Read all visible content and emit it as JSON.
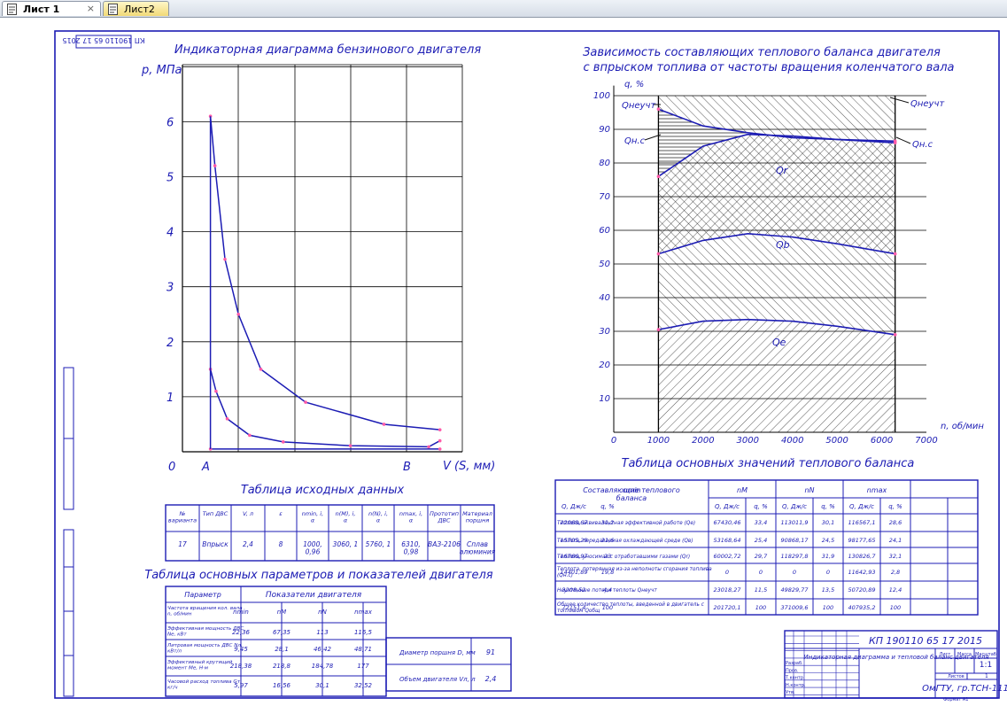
{
  "tabs": [
    {
      "label": "Лист 1",
      "close": "×",
      "active": true
    },
    {
      "label": "Лист2",
      "active": false
    }
  ],
  "indicator": {
    "title": "Индикаторная диаграмма бензинового двигателя",
    "stamp": "КП 190110 65 17 2015",
    "ylabel": "p, МПа",
    "xlabel": "V (S, мм)",
    "yticks": [
      "0",
      "1",
      "2",
      "3",
      "4",
      "5",
      "6"
    ],
    "point_a": "A",
    "point_b": "B"
  },
  "chart_data": [
    {
      "type": "line",
      "title": "Индикаторная диаграмма бензинового двигателя",
      "xlabel": "V (S, мм)",
      "ylabel": "p, МПа",
      "ylim": [
        0,
        6.5
      ],
      "series": [
        {
          "values": [
            [
              0.5,
              6.1
            ],
            [
              0.9,
              5.2
            ],
            [
              1.8,
              3.5
            ],
            [
              3.0,
              2.5
            ],
            [
              5.0,
              1.5
            ],
            [
              9,
              0.9
            ],
            [
              16,
              0.5
            ],
            [
              21,
              0.4
            ]
          ]
        },
        {
          "values": [
            [
              0.5,
              1.5
            ],
            [
              1,
              1.1
            ],
            [
              2,
              0.6
            ],
            [
              4,
              0.3
            ],
            [
              7,
              0.18
            ],
            [
              13,
              0.11
            ],
            [
              20,
              0.09
            ],
            [
              21,
              0.2
            ]
          ]
        },
        {
          "values": [
            [
              0.5,
              0.05
            ],
            [
              21,
              0.05
            ]
          ]
        }
      ]
    },
    {
      "type": "area",
      "title": "Зависимость составляющих теплового баланса двигателя с впрыском топлива от частоты вращения коленчатого вала",
      "xlabel": "n, об/мин",
      "ylabel": "q, %",
      "xlim": [
        0,
        7000
      ],
      "ylim": [
        0,
        100
      ],
      "x": [
        1000,
        2000,
        3000,
        4000,
        5000,
        6300
      ],
      "series": [
        {
          "name": "qe",
          "values": [
            30.5,
            33,
            33.5,
            33,
            31.5,
            29
          ]
        },
        {
          "name": "qb",
          "values": [
            53,
            57,
            59,
            58,
            56,
            53
          ]
        },
        {
          "name": "qr",
          "values": [
            76,
            85,
            88.5,
            88,
            87,
            86
          ]
        },
        {
          "name": "qн.с",
          "values": [
            96,
            91,
            89,
            87.5,
            87,
            86.5
          ]
        }
      ]
    }
  ],
  "heat_chart": {
    "title1": "Зависимость составляющих теплового баланса двигателя",
    "title2": "с впрыском топлива от частоты вращения коленчатого вала",
    "ylabel": "q, %",
    "xlabel": "n, об/мин",
    "yticks": [
      "10",
      "20",
      "30",
      "40",
      "50",
      "60",
      "70",
      "80",
      "90",
      "100"
    ],
    "xticks": [
      "0",
      "1000",
      "2000",
      "3000",
      "4000",
      "5000",
      "6000",
      "7000"
    ],
    "labels": {
      "qneuch_l": "Qнеучт",
      "qneuch_r": "Qнеучт",
      "qnc_l": "Qн.с",
      "qnc_r": "Qн.с",
      "qr": "Qr",
      "qb": "Qb",
      "qe": "Qe"
    }
  },
  "source_table": {
    "title": "Таблица исходных данных",
    "headers": [
      "№ варианта",
      "Тип ДВС",
      "V, л",
      "ε",
      "nmin, i, α",
      "n(M), i, α",
      "n(N), i, α",
      "nmax, i, α",
      "Прототип ДВС",
      "Материал поршня"
    ],
    "row": [
      "17",
      "Впрыск",
      "2,4",
      "8",
      "1000, 0,96",
      "3060, 1",
      "5760, 1",
      "6310, 0,98",
      "ВАЗ-2106",
      "Сплав алюминия"
    ]
  },
  "params_table": {
    "title": "Таблица основных параметров и показателей двигателя",
    "h_param": "Параметр",
    "h_group": "Показатели двигателя",
    "cols": [
      "nmin",
      "nM",
      "nN",
      "nmax"
    ],
    "rows": [
      {
        "name": "Частота вращения кол. вала n, об/мин",
        "v": [
          "",
          "",
          "",
          ""
        ]
      },
      {
        "name": "Эффективная мощность ДВС Ne, кВт",
        "v": [
          "22,36",
          "67,35",
          "113",
          "116,5"
        ]
      },
      {
        "name": "Литровая мощность ДВС Nл, кВт/л",
        "v": [
          "9,45",
          "28,1",
          "46,42",
          "48,71"
        ]
      },
      {
        "name": "Эффективный крутящий момент Me, Н·м",
        "v": [
          "218,38",
          "218,8",
          "184,78",
          "177"
        ]
      },
      {
        "name": "Часовой расход топлива Gт, кг/ч",
        "v": [
          "5,97",
          "16,56",
          "30,1",
          "32,52"
        ]
      }
    ],
    "extra": [
      {
        "label": "Диаметр поршня D, мм",
        "value": "91"
      },
      {
        "label": "Объем двигателя Vл, л",
        "value": "2,4"
      }
    ]
  },
  "balance_table": {
    "title": "Таблица основных значений теплового баланса",
    "h_comp": "Составляющие теплового баланса",
    "groups": [
      "nmin",
      "nM",
      "nN",
      "nmax"
    ],
    "sub": [
      "Q, Дж/с",
      "q, %"
    ],
    "rows": [
      {
        "name": "Теплота, эквивалентная эффективной работе (Qe)",
        "v": [
          "22068,67",
          "31,2",
          "67430,46",
          "33,4",
          "113011,9",
          "30,1",
          "116567,1",
          "28,6"
        ]
      },
      {
        "name": "Теплота, передаваемая охлаждающей среде (Qв)",
        "v": [
          "15705,29",
          "21,6",
          "53168,64",
          "25,4",
          "90868,17",
          "24,5",
          "98177,65",
          "24,1"
        ]
      },
      {
        "name": "Теплота, уносимая с отработавшими газами (Qr)",
        "v": [
          "16766,97",
          "23",
          "60002,72",
          "29,7",
          "118297,8",
          "31,9",
          "130826,7",
          "32,1"
        ]
      },
      {
        "name": "Теплота, потерянная из-за неполноты сгорания топлива (Qн.с)",
        "v": [
          "14401,89",
          "19,8",
          "0",
          "0",
          "0",
          "0",
          "11642,93",
          "2,8"
        ]
      },
      {
        "name": "Неучтенные потери теплоты Qнеучт",
        "v": [
          "3208,52",
          "4,4",
          "23018,27",
          "11,5",
          "49829,77",
          "13,5",
          "50720,89",
          "12,4"
        ]
      },
      {
        "name": "Общее количество теплоты, введенной в двигатель с топливом Qобщ",
        "v": [
          "72151,4",
          "100",
          "201720,1",
          "100",
          "371009,6",
          "100",
          "407935,2",
          "100"
        ]
      }
    ]
  },
  "title_block": {
    "code": "КП 190110 65 17 2015",
    "name": "Индикаторная диаграмма и тепловой баланс двигателя",
    "sheet": "Лист",
    "sheets": "Листов",
    "mass": "Масса",
    "scale": "Масштаб",
    "scale_v": "1:1",
    "sheets_v": "1",
    "org": "ОмГТУ, гр.ТСН-111",
    "rows": [
      "Разраб.",
      "Пров.",
      "Т.контр.",
      "Н.контр.",
      "Утв."
    ],
    "bottom": "Формат А1"
  },
  "colors": {
    "blue": "#1c1cb4",
    "black": "#000000",
    "pink": "#ff5aa8"
  }
}
